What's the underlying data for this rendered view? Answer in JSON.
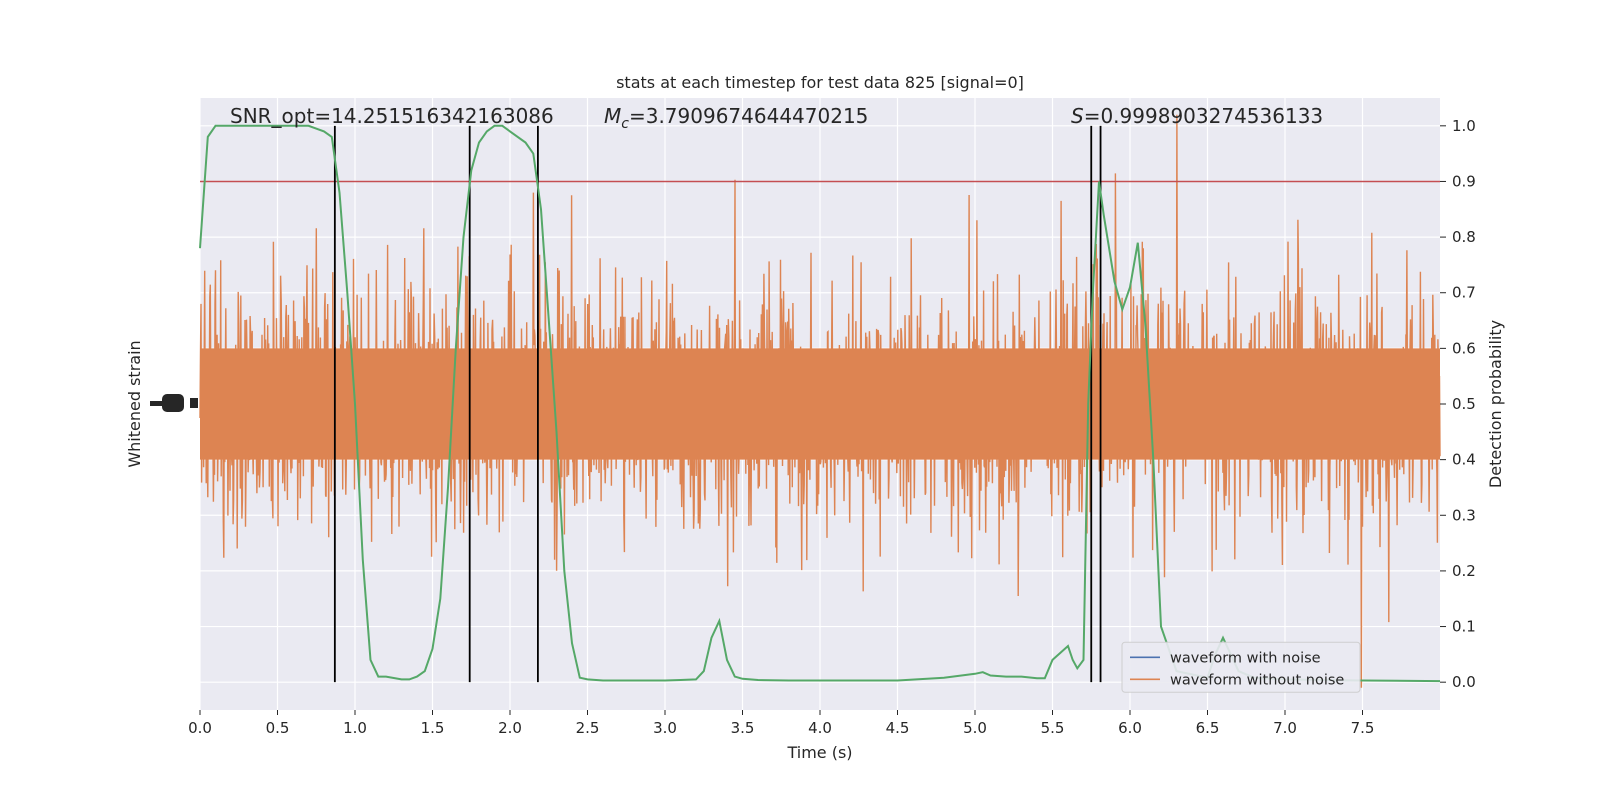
{
  "chart_data": {
    "type": "line",
    "title": "stats at each timestep for test data 825 [signal=0]",
    "xlabel": "Time (s)",
    "ylabel_left": "Whitened strain",
    "ylabel_right": "Detection probability",
    "xlim": [
      0.0,
      8.0
    ],
    "ylim_right": [
      -0.05,
      1.05
    ],
    "grid": true,
    "xticks": [
      "0.0",
      "0.5",
      "1.0",
      "1.5",
      "2.0",
      "2.5",
      "3.0",
      "3.5",
      "4.0",
      "4.5",
      "5.0",
      "5.5",
      "6.0",
      "6.5",
      "7.0",
      "7.5"
    ],
    "yticks_right": [
      "0.0",
      "0.1",
      "0.2",
      "0.3",
      "0.4",
      "0.5",
      "0.6",
      "0.7",
      "0.8",
      "0.9",
      "1.0"
    ],
    "annotations": {
      "snr": "SNR_opt=14.251516342163086",
      "mc_symbol": "M",
      "mc_sub": "c",
      "mc_value": "=3.7909674644470215",
      "s_symbol": "S",
      "s_value": "=0.9998903274536133"
    },
    "threshold": {
      "value": 0.9,
      "color": "#c44e52"
    },
    "vertical_lines": [
      0.87,
      1.74,
      2.18,
      5.75,
      5.81
    ],
    "legend": {
      "placement": "lower-right",
      "entries": [
        {
          "label": "waveform with noise",
          "color": "#4c72b0"
        },
        {
          "label": "waveform without noise",
          "color": "#dd8452"
        }
      ]
    },
    "series": [
      {
        "kind": "detection-probability",
        "color": "#55a868",
        "x": [
          0.0,
          0.05,
          0.1,
          0.15,
          0.2,
          0.3,
          0.4,
          0.5,
          0.6,
          0.7,
          0.8,
          0.85,
          0.9,
          0.95,
          1.0,
          1.05,
          1.1,
          1.15,
          1.2,
          1.3,
          1.35,
          1.4,
          1.45,
          1.5,
          1.55,
          1.6,
          1.65,
          1.7,
          1.75,
          1.8,
          1.85,
          1.9,
          1.95,
          2.0,
          2.1,
          2.15,
          2.2,
          2.25,
          2.3,
          2.35,
          2.4,
          2.45,
          2.5,
          2.6,
          2.8,
          3.0,
          3.1,
          3.2,
          3.25,
          3.3,
          3.35,
          3.4,
          3.45,
          3.5,
          3.55,
          3.6,
          3.8,
          4.0,
          4.5,
          4.8,
          5.0,
          5.05,
          5.1,
          5.2,
          5.3,
          5.4,
          5.45,
          5.5,
          5.6,
          5.63,
          5.66,
          5.7,
          5.73,
          5.76,
          5.8,
          5.83,
          5.9,
          5.95,
          6.0,
          6.05,
          6.1,
          6.15,
          6.2,
          6.3,
          6.5,
          6.55,
          6.6,
          6.65,
          6.7,
          6.8,
          7.0,
          7.5,
          8.0
        ],
        "y": [
          0.78,
          0.98,
          1.0,
          1.0,
          1.0,
          1.0,
          1.0,
          1.0,
          1.0,
          1.0,
          0.99,
          0.98,
          0.88,
          0.7,
          0.5,
          0.22,
          0.04,
          0.01,
          0.01,
          0.005,
          0.005,
          0.01,
          0.02,
          0.06,
          0.15,
          0.35,
          0.6,
          0.8,
          0.92,
          0.97,
          0.99,
          1.0,
          1.0,
          0.99,
          0.97,
          0.95,
          0.85,
          0.65,
          0.45,
          0.2,
          0.07,
          0.008,
          0.005,
          0.003,
          0.003,
          0.003,
          0.004,
          0.005,
          0.02,
          0.08,
          0.11,
          0.04,
          0.01,
          0.006,
          0.005,
          0.004,
          0.003,
          0.003,
          0.003,
          0.008,
          0.015,
          0.018,
          0.012,
          0.01,
          0.01,
          0.007,
          0.007,
          0.04,
          0.065,
          0.04,
          0.025,
          0.04,
          0.5,
          0.7,
          0.9,
          0.84,
          0.72,
          0.67,
          0.71,
          0.79,
          0.64,
          0.4,
          0.1,
          0.02,
          0.008,
          0.05,
          0.08,
          0.05,
          0.02,
          0.008,
          0.005,
          0.003,
          0.002
        ]
      }
    ]
  }
}
